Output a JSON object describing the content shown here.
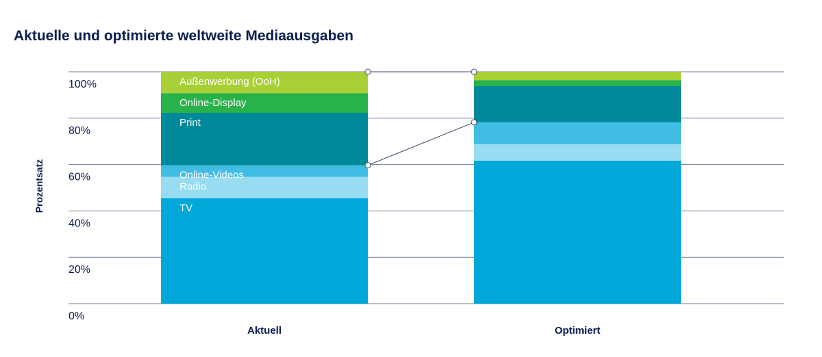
{
  "chart_data": {
    "type": "bar",
    "stacked": true,
    "title": "Aktuelle und optimierte weltweite Mediaausgaben",
    "ylabel": "Prozentsatz",
    "xlabel": "",
    "ylim": [
      0,
      100
    ],
    "yticks": [
      "0%",
      "20%",
      "40%",
      "60%",
      "80%",
      "100%"
    ],
    "ytick_values": [
      0,
      20,
      40,
      60,
      80,
      100
    ],
    "grid": true,
    "categories": [
      "Aktuell",
      "Optimiert"
    ],
    "series": [
      {
        "name": "TV",
        "color": "#00a8d9",
        "values": [
          45.5,
          61.7
        ]
      },
      {
        "name": "Radio",
        "color": "#98dcf1",
        "values": [
          9.2,
          7.1
        ]
      },
      {
        "name": "Online-Videos",
        "color": "#40bde4",
        "values": [
          5.0,
          9.4
        ]
      },
      {
        "name": "Print",
        "color": "#00899a",
        "values": [
          22.6,
          15.6
        ]
      },
      {
        "name": "Online-Display",
        "color": "#27b24a",
        "values": [
          8.5,
          2.6
        ]
      },
      {
        "name": "Außenwerbung (OoH)",
        "color": "#a8cf36",
        "values": [
          9.2,
          3.6
        ]
      }
    ],
    "connectors": [
      {
        "from_category": "Aktuell",
        "to_category": "Optimiert",
        "from_value": 100,
        "to_value": 100
      },
      {
        "from_category": "Aktuell",
        "to_category": "Optimiert",
        "from_value": 59.7,
        "to_value": 78.2
      }
    ]
  }
}
